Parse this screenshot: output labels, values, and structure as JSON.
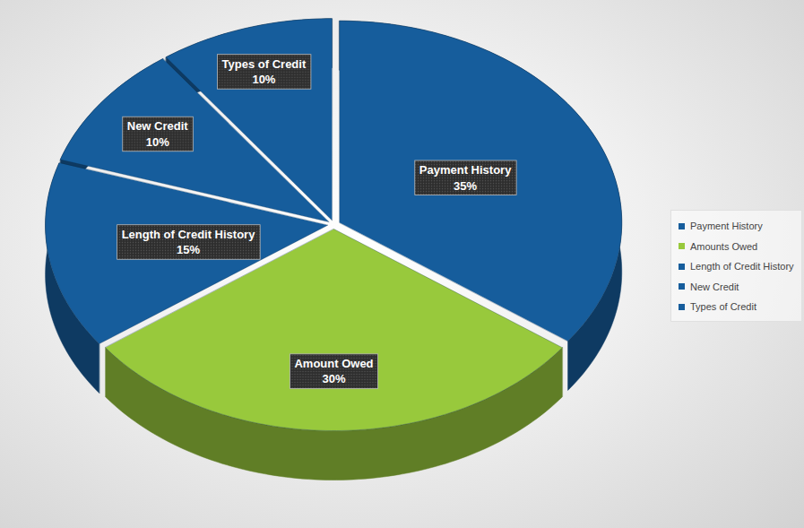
{
  "chart_data": {
    "type": "pie",
    "categories": [
      "Payment History",
      "Amount Owed",
      "Length of Credit History",
      "New Credit",
      "Types of Credit"
    ],
    "values": [
      35,
      30,
      15,
      10,
      10
    ],
    "value_labels": [
      "35%",
      "30%",
      "15%",
      "10%",
      "10%"
    ],
    "colors": [
      "#165d9c",
      "#98c93c",
      "#165d9c",
      "#165d9c",
      "#165d9c"
    ],
    "legend_labels": [
      "Payment History",
      "Amounts Owed",
      "Length of Credit History",
      "New Credit",
      "Types of Credit"
    ],
    "legend": "right",
    "data_labels": true
  }
}
